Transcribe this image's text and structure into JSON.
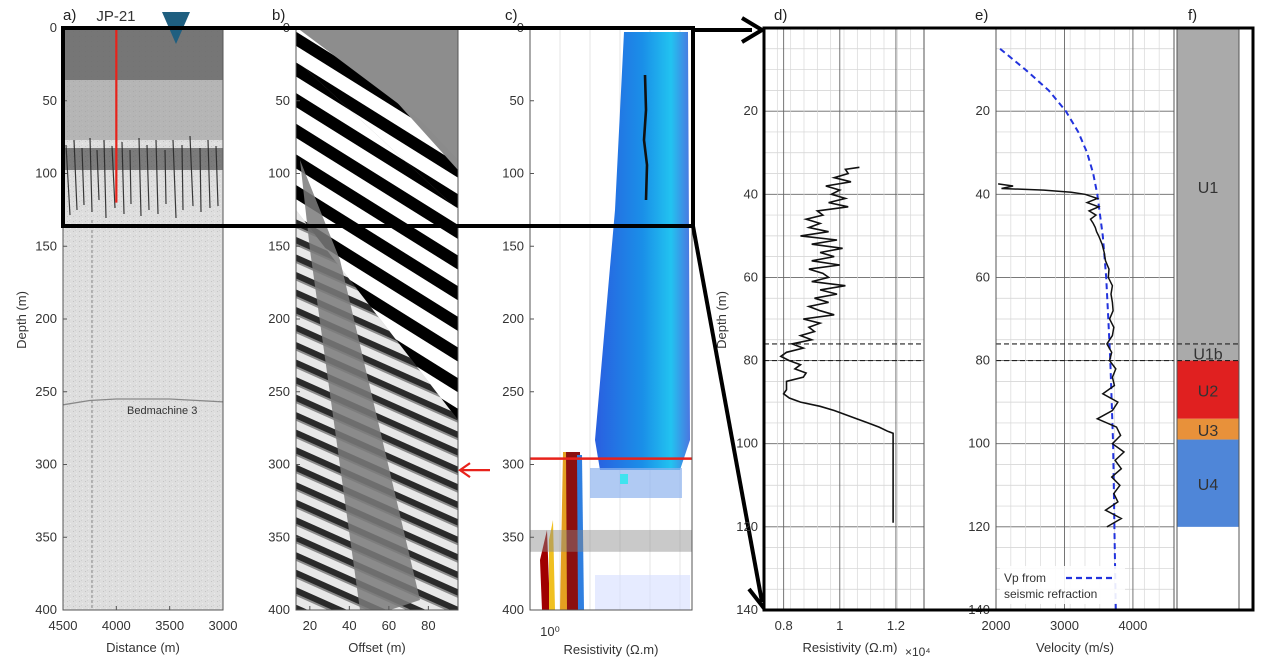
{
  "chart_data": [
    {
      "panel": "a)",
      "type": "heatmap",
      "xlabel": "Distance (m)",
      "ylabel": "Depth (m)",
      "x_ticks": [
        "4500",
        "4000",
        "3500",
        "3000"
      ],
      "y_ticks": [
        "0",
        "50",
        "100",
        "150",
        "200",
        "250",
        "300",
        "350",
        "400"
      ],
      "xlim": [
        4500,
        3000
      ],
      "ylim": [
        0,
        400
      ],
      "annotations": {
        "borehole": "JP-21",
        "bed_label": "Bedmachine 3"
      },
      "borehole_line": {
        "x": 4000,
        "depth": [
          0,
          120
        ]
      },
      "bedmachine_line": {
        "x": [
          4500,
          4250,
          4000,
          3500,
          3000
        ],
        "depth": [
          259,
          256,
          255,
          255,
          257
        ]
      }
    },
    {
      "panel": "b)",
      "type": "heatmap",
      "xlabel": "Offset (m)",
      "x_ticks": [
        "20",
        "40",
        "60",
        "80"
      ],
      "y_ticks": [
        "0",
        "50",
        "100",
        "150",
        "200",
        "250",
        "300",
        "350",
        "400"
      ],
      "xlim": [
        13,
        95
      ],
      "ylim": [
        0,
        400
      ],
      "arrow_depth": 297
    },
    {
      "panel": "c)",
      "type": "heatmap",
      "xlabel": "Resistivity (Ω.m)",
      "x_ticks": [
        "10⁰"
      ],
      "y_ticks": [
        "0",
        "50",
        "100",
        "150",
        "200",
        "250",
        "300",
        "350",
        "400"
      ],
      "ylim": [
        0,
        400
      ],
      "horizontal_line_depth": 296,
      "shaded_band": [
        345,
        360
      ]
    },
    {
      "panel": "d)",
      "type": "line",
      "ylabel": "Depth (m)",
      "xlabel": "Resistivity (Ω.m)",
      "x_multiplier": "×10⁴",
      "x_ticks": [
        "0.8",
        "1",
        "1.2"
      ],
      "y_ticks": [
        "20",
        "40",
        "60",
        "80",
        "100",
        "120",
        "140"
      ],
      "xlim": [
        0.73,
        1.3
      ],
      "ylim": [
        0,
        140
      ],
      "series": [
        {
          "depth": [
            33.5,
            34,
            35,
            36,
            37,
            38,
            39,
            40,
            41,
            42,
            43,
            44,
            45,
            46,
            47,
            48,
            49,
            50,
            51,
            52,
            53,
            54,
            55,
            56,
            57,
            58,
            59,
            60,
            61,
            62,
            63,
            64,
            65,
            66,
            67,
            68,
            69,
            70,
            71,
            72,
            73,
            74,
            75,
            76,
            77,
            78,
            79,
            80,
            81,
            82,
            83,
            84,
            85,
            86,
            87,
            88,
            89,
            90,
            91,
            92,
            93,
            94,
            95,
            96,
            97,
            97.5,
            98,
            119
          ],
          "value": [
            1.07,
            1.02,
            1.03,
            0.98,
            1.04,
            0.95,
            1.0,
            0.97,
            1.02,
            0.96,
            1.03,
            0.92,
            0.94,
            0.88,
            0.93,
            0.89,
            0.96,
            0.86,
            0.99,
            0.9,
            1.01,
            0.93,
            0.98,
            0.9,
            1.0,
            0.89,
            0.94,
            0.96,
            0.9,
            1.02,
            0.93,
            0.99,
            0.91,
            0.96,
            0.89,
            0.93,
            0.98,
            0.87,
            0.93,
            0.89,
            0.91,
            0.86,
            0.9,
            0.83,
            0.87,
            0.81,
            0.79,
            0.82,
            0.86,
            0.84,
            0.88,
            0.87,
            0.81,
            0.81,
            0.81,
            0.8,
            0.82,
            0.86,
            0.93,
            0.98,
            1.02,
            1.06,
            1.1,
            1.14,
            1.17,
            1.19,
            1.19,
            1.19
          ]
        }
      ],
      "h_lines": [
        76,
        80
      ]
    },
    {
      "panel": "e)",
      "type": "line",
      "xlabel": "Velocity (m/s)",
      "x_ticks": [
        "2000",
        "3000",
        "4000"
      ],
      "y_ticks": [
        "20",
        "40",
        "60",
        "80",
        "100",
        "120",
        "140"
      ],
      "xlim": [
        2000,
        4600
      ],
      "ylim": [
        0,
        140
      ],
      "legend": {
        "line1": "Vp from",
        "line2": "seismic refraction"
      },
      "series": [
        {
          "depth": [
            37.5,
            38,
            38.6,
            39,
            39.5,
            40,
            41,
            42,
            43,
            44,
            45,
            46,
            47,
            48,
            49,
            50,
            52,
            54,
            56,
            58,
            60,
            62,
            64,
            66,
            68,
            70,
            72,
            74,
            76,
            78,
            80,
            82,
            84,
            86,
            88,
            90,
            92,
            94,
            96,
            98,
            100,
            102,
            104,
            106,
            108,
            110,
            112,
            114,
            116,
            118,
            120
          ],
          "value": [
            2030,
            2250,
            2080,
            2700,
            3100,
            3300,
            3480,
            3330,
            3500,
            3360,
            3460,
            3380,
            3420,
            3450,
            3470,
            3500,
            3550,
            3580,
            3600,
            3650,
            3640,
            3700,
            3680,
            3700,
            3710,
            3660,
            3720,
            3700,
            3620,
            3690,
            3660,
            3750,
            3700,
            3730,
            3560,
            3780,
            3700,
            3480,
            3760,
            3820,
            3700,
            3870,
            3740,
            3830,
            3690,
            3810,
            3720,
            3780,
            3600,
            3830,
            3620
          ]
        },
        {
          "depth": [
            5,
            10,
            15,
            20,
            25,
            30,
            35,
            40,
            50,
            60,
            70,
            80,
            90,
            100,
            110,
            120,
            130,
            140
          ],
          "value": [
            2060,
            2430,
            2770,
            3020,
            3200,
            3330,
            3420,
            3480,
            3560,
            3610,
            3640,
            3670,
            3690,
            3710,
            3720,
            3730,
            3740,
            3750
          ]
        }
      ],
      "h_lines": [
        76,
        80
      ]
    },
    {
      "panel": "f)",
      "type": "bar",
      "units": [
        {
          "label": "U1",
          "top": 0,
          "bottom": 76,
          "color": "#aaaaaa"
        },
        {
          "label": "U1b",
          "top": 76,
          "bottom": 80,
          "color": "#aaaaaa"
        },
        {
          "label": "U2",
          "top": 80,
          "bottom": 94,
          "color": "#e02020"
        },
        {
          "label": "U3",
          "top": 94,
          "bottom": 99,
          "color": "#e8913a"
        },
        {
          "label": "U4",
          "top": 99,
          "bottom": 120,
          "color": "#4f86d8"
        }
      ]
    }
  ]
}
